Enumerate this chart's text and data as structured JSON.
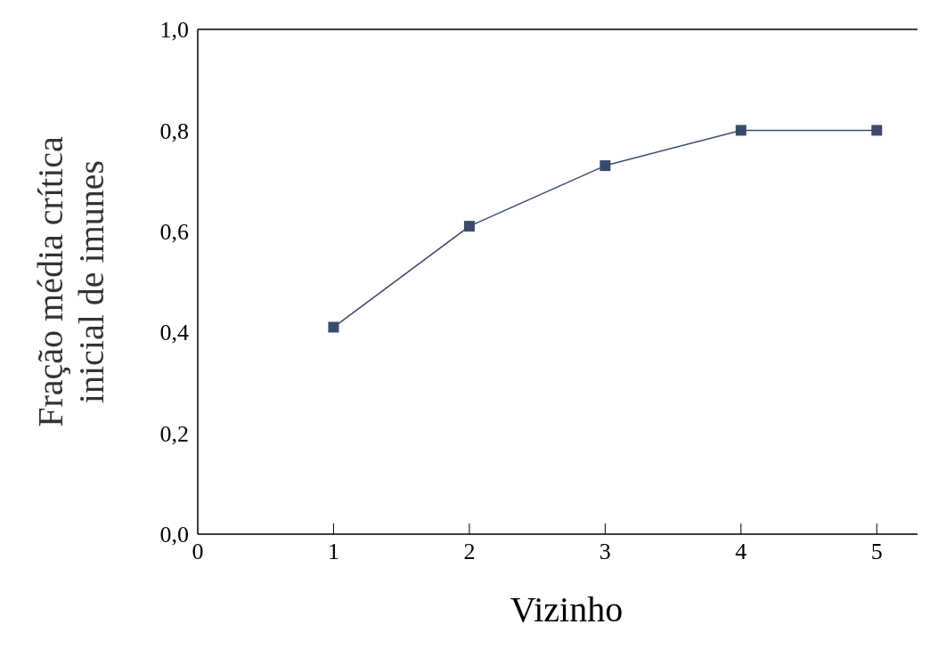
{
  "chart_data": {
    "type": "line",
    "xlabel": "Vizinho",
    "ylabel": "Fração média crítica\ninicial de imunes",
    "x": [
      1,
      2,
      3,
      4,
      5
    ],
    "series": [
      {
        "color": "#3b4a6b",
        "values": [
          0.41,
          0.61,
          0.73,
          0.8,
          0.8
        ]
      }
    ],
    "xlim": [
      0,
      5.3
    ],
    "xticks": [
      {
        "value": 0,
        "label": "0"
      },
      {
        "value": 1,
        "label": "1"
      },
      {
        "value": 2,
        "label": "2"
      },
      {
        "value": 3,
        "label": "3"
      },
      {
        "value": 4,
        "label": "4"
      },
      {
        "value": 5,
        "label": "5"
      }
    ],
    "ylim": [
      0,
      1
    ],
    "yticks": [
      {
        "value": 0,
        "label": "0,0"
      },
      {
        "value": 0.2,
        "label": "0,2"
      },
      {
        "value": 0.4,
        "label": "0,4"
      },
      {
        "value": 0.6,
        "label": "0,6"
      },
      {
        "value": 0.8,
        "label": "0,8"
      },
      {
        "value": 1,
        "label": "1,0"
      }
    ],
    "marker": "square",
    "line_style": "solid",
    "grid": false
  }
}
